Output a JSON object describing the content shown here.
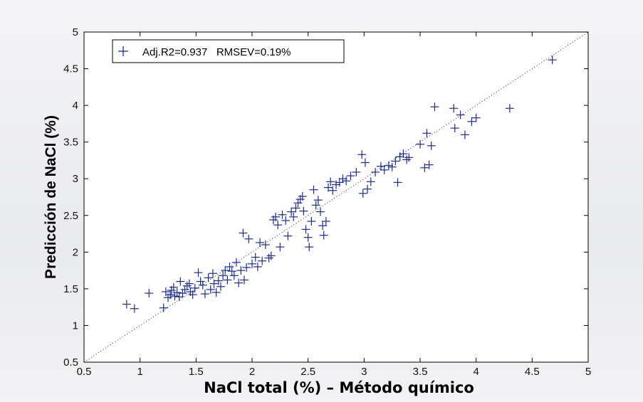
{
  "chart_data": {
    "type": "scatter",
    "title": "",
    "xlabel": "NaCl total (%) – Método químico",
    "ylabel": "Predicción de NaCl (%)",
    "xlim": [
      0.5,
      5
    ],
    "ylim": [
      0.5,
      5
    ],
    "xticks": [
      "0.5",
      "1",
      "1.5",
      "2",
      "2.5",
      "3",
      "3.5",
      "4",
      "4.5",
      "5"
    ],
    "yticks": [
      "0.5",
      "1",
      "1.5",
      "2",
      "2.5",
      "3",
      "3.5",
      "4",
      "4.5",
      "5"
    ],
    "grid": false,
    "legend_position": "top-left",
    "marker": "+",
    "marker_color": "#1a2a9e",
    "reference_line": "y = x (dotted)",
    "series": [
      {
        "name": "Adj.R2=0.937   RMSEV=0.19%",
        "points": [
          [
            0.88,
            1.29
          ],
          [
            0.95,
            1.23
          ],
          [
            1.08,
            1.44
          ],
          [
            1.21,
            1.24
          ],
          [
            1.23,
            1.46
          ],
          [
            1.25,
            1.38
          ],
          [
            1.27,
            1.42
          ],
          [
            1.28,
            1.48
          ],
          [
            1.3,
            1.52
          ],
          [
            1.31,
            1.4
          ],
          [
            1.33,
            1.45
          ],
          [
            1.35,
            1.39
          ],
          [
            1.36,
            1.6
          ],
          [
            1.38,
            1.44
          ],
          [
            1.4,
            1.49
          ],
          [
            1.42,
            1.54
          ],
          [
            1.44,
            1.57
          ],
          [
            1.45,
            1.46
          ],
          [
            1.47,
            1.42
          ],
          [
            1.49,
            1.51
          ],
          [
            1.52,
            1.72
          ],
          [
            1.54,
            1.6
          ],
          [
            1.56,
            1.55
          ],
          [
            1.58,
            1.43
          ],
          [
            1.61,
            1.65
          ],
          [
            1.63,
            1.49
          ],
          [
            1.65,
            1.71
          ],
          [
            1.66,
            1.57
          ],
          [
            1.68,
            1.45
          ],
          [
            1.7,
            1.61
          ],
          [
            1.72,
            1.53
          ],
          [
            1.74,
            1.68
          ],
          [
            1.76,
            1.75
          ],
          [
            1.78,
            1.62
          ],
          [
            1.8,
            1.8
          ],
          [
            1.82,
            1.74
          ],
          [
            1.84,
            1.68
          ],
          [
            1.86,
            1.86
          ],
          [
            1.88,
            1.58
          ],
          [
            1.9,
            1.75
          ],
          [
            1.92,
            2.26
          ],
          [
            1.93,
            1.62
          ],
          [
            1.95,
            1.79
          ],
          [
            1.97,
            2.18
          ],
          [
            2.0,
            1.84
          ],
          [
            2.03,
            1.93
          ],
          [
            2.05,
            1.8
          ],
          [
            2.07,
            2.13
          ],
          [
            2.09,
            1.88
          ],
          [
            2.12,
            2.1
          ],
          [
            2.15,
            1.92
          ],
          [
            2.17,
            1.95
          ],
          [
            2.19,
            2.44
          ],
          [
            2.21,
            2.48
          ],
          [
            2.23,
            2.37
          ],
          [
            2.25,
            2.07
          ],
          [
            2.27,
            2.51
          ],
          [
            2.3,
            2.43
          ],
          [
            2.32,
            2.22
          ],
          [
            2.35,
            2.55
          ],
          [
            2.37,
            2.48
          ],
          [
            2.39,
            2.6
          ],
          [
            2.41,
            2.67
          ],
          [
            2.43,
            2.72
          ],
          [
            2.45,
            2.76
          ],
          [
            2.46,
            2.56
          ],
          [
            2.48,
            2.31
          ],
          [
            2.5,
            2.2
          ],
          [
            2.51,
            2.07
          ],
          [
            2.53,
            2.42
          ],
          [
            2.55,
            2.85
          ],
          [
            2.57,
            2.64
          ],
          [
            2.59,
            2.71
          ],
          [
            2.61,
            2.55
          ],
          [
            2.63,
            2.36
          ],
          [
            2.64,
            2.23
          ],
          [
            2.66,
            2.42
          ],
          [
            2.68,
            2.88
          ],
          [
            2.7,
            2.96
          ],
          [
            2.72,
            2.84
          ],
          [
            2.75,
            2.92
          ],
          [
            2.78,
            2.95
          ],
          [
            2.81,
            3.0
          ],
          [
            2.84,
            2.97
          ],
          [
            2.88,
            3.04
          ],
          [
            2.93,
            3.09
          ],
          [
            2.98,
            3.33
          ],
          [
            2.99,
            2.8
          ],
          [
            3.01,
            3.22
          ],
          [
            3.03,
            2.86
          ],
          [
            3.06,
            2.96
          ],
          [
            3.1,
            3.09
          ],
          [
            3.15,
            3.17
          ],
          [
            3.18,
            3.12
          ],
          [
            3.22,
            3.18
          ],
          [
            3.25,
            3.16
          ],
          [
            3.28,
            3.24
          ],
          [
            3.3,
            2.95
          ],
          [
            3.32,
            3.3
          ],
          [
            3.35,
            3.34
          ],
          [
            3.38,
            3.26
          ],
          [
            3.4,
            3.29
          ],
          [
            3.5,
            3.47
          ],
          [
            3.54,
            3.15
          ],
          [
            3.56,
            3.62
          ],
          [
            3.58,
            3.19
          ],
          [
            3.6,
            3.45
          ],
          [
            3.63,
            3.98
          ],
          [
            3.8,
            3.96
          ],
          [
            3.81,
            3.69
          ],
          [
            3.86,
            3.87
          ],
          [
            3.9,
            3.6
          ],
          [
            3.96,
            3.78
          ],
          [
            4.0,
            3.83
          ],
          [
            4.3,
            3.96
          ],
          [
            4.68,
            4.62
          ]
        ]
      }
    ]
  }
}
